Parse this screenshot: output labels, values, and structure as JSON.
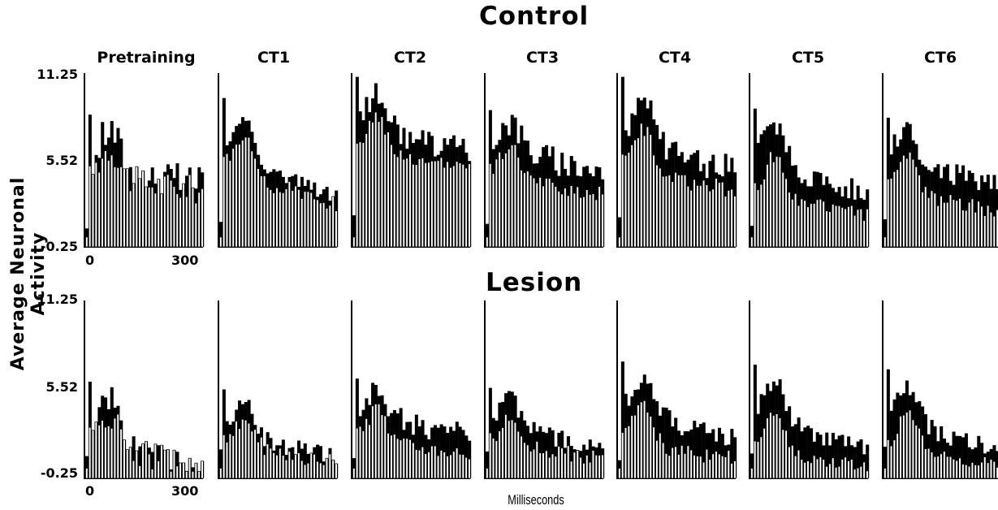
{
  "figure": {
    "control_title": "Control",
    "lesion_title": "Lesion",
    "ylabel": "Average Neuronal Activity",
    "xlabel": "Milliseconds",
    "panel_titles": [
      "Pretraining",
      "CT1",
      "CT2",
      "CT3",
      "CT4",
      "CT5",
      "CT6"
    ],
    "yticks": [
      "11.25",
      "5.52",
      "-0.25"
    ],
    "xticks": [
      "0",
      "300"
    ]
  },
  "chart_data": [
    {
      "type": "bar",
      "group": "Control",
      "ylim": [
        -0.25,
        11.25
      ],
      "panels": [
        {
          "name": "Pretraining",
          "top_level": 4.8,
          "open_level": 4.4,
          "top_noise": 1.3,
          "open_noise": 1.0,
          "peak": 8.5,
          "decay": 0.2
        },
        {
          "name": "CT1",
          "top_level": 6.0,
          "open_level": 5.0,
          "top_noise": 0.5,
          "open_noise": 0.6,
          "peak": 9.6,
          "decay": 0.5
        },
        {
          "name": "CT2",
          "top_level": 7.6,
          "open_level": 6.2,
          "top_noise": 0.9,
          "open_noise": 0.4,
          "peak": 11.0,
          "decay": 0.2
        },
        {
          "name": "CT3",
          "top_level": 6.6,
          "open_level": 4.6,
          "top_noise": 1.0,
          "open_noise": 0.5,
          "peak": 8.8,
          "decay": 0.3
        },
        {
          "name": "CT4",
          "top_level": 6.8,
          "open_level": 5.0,
          "top_noise": 1.0,
          "open_noise": 0.6,
          "peak": 11.0,
          "decay": 0.3
        },
        {
          "name": "CT5",
          "top_level": 5.6,
          "open_level": 3.2,
          "top_noise": 0.8,
          "open_noise": 0.5,
          "peak": 8.9,
          "decay": 0.4
        },
        {
          "name": "CT6",
          "top_level": 6.1,
          "open_level": 3.5,
          "top_noise": 0.8,
          "open_noise": 0.5,
          "peak": 8.3,
          "decay": 0.4
        }
      ]
    },
    {
      "type": "bar",
      "group": "Lesion",
      "ylim": [
        -0.25,
        11.25
      ],
      "panels": [
        {
          "name": "Pretraining",
          "top_level": 2.0,
          "open_level": 2.2,
          "top_noise": 1.0,
          "open_noise": 0.9,
          "peak": 6.0,
          "decay": 0.8
        },
        {
          "name": "CT1",
          "top_level": 2.7,
          "open_level": 2.0,
          "top_noise": 0.6,
          "open_noise": 0.5,
          "peak": 5.5,
          "decay": 0.6
        },
        {
          "name": "CT2",
          "top_level": 4.1,
          "open_level": 2.4,
          "top_noise": 0.8,
          "open_noise": 0.5,
          "peak": 6.2,
          "decay": 0.4
        },
        {
          "name": "CT3",
          "top_level": 3.4,
          "open_level": 2.1,
          "top_noise": 0.6,
          "open_noise": 0.5,
          "peak": 5.6,
          "decay": 0.5
        },
        {
          "name": "CT4",
          "top_level": 4.4,
          "open_level": 2.0,
          "top_noise": 0.7,
          "open_noise": 0.5,
          "peak": 7.3,
          "decay": 0.5
        },
        {
          "name": "CT5",
          "top_level": 3.9,
          "open_level": 1.5,
          "top_noise": 0.6,
          "open_noise": 0.4,
          "peak": 7.1,
          "decay": 0.6
        },
        {
          "name": "CT6",
          "top_level": 3.7,
          "open_level": 1.6,
          "top_noise": 0.6,
          "open_noise": 0.4,
          "peak": 6.8,
          "decay": 0.6
        }
      ]
    }
  ]
}
